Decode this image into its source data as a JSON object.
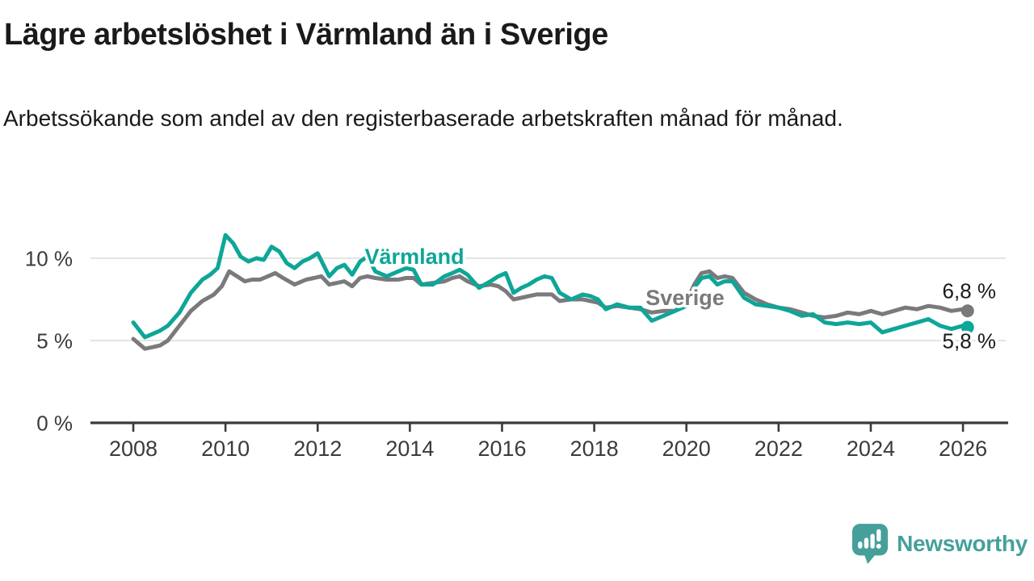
{
  "header": {
    "title": "Lägre arbetslöshet i Värmland än i Sverige",
    "subtitle": "Arbetssökande som andel av den registerbaserade arbetskraften månad för månad."
  },
  "branding": {
    "logo_text": "Newsworthy",
    "logo_color": "#45a09a",
    "logo_icon": "speech-bubble-bar-chart-icon"
  },
  "colors": {
    "varmland": "#0da698",
    "sverige": "#7a7a7d",
    "axis_text": "#3b3b3b",
    "axis_line": "#3a3a3a",
    "gridline": "#dbdbdb",
    "value_label": "#1a1a1a"
  },
  "chart_data": {
    "type": "line",
    "unit": "%",
    "grid": true,
    "x_axis": {
      "ticks": [
        2008,
        2010,
        2012,
        2014,
        2016,
        2018,
        2020,
        2022,
        2024,
        2026
      ],
      "range": [
        2008,
        2026.2
      ]
    },
    "y_axis": {
      "ticks": [
        {
          "value": 0,
          "label": "0 %"
        },
        {
          "value": 5,
          "label": "5 %"
        },
        {
          "value": 10,
          "label": "10 %"
        }
      ],
      "range": [
        0,
        12.5
      ]
    },
    "series": [
      {
        "name": "Sverige",
        "color": "#7a7a7d",
        "end_label": "6,8 %",
        "end_value": 6.8,
        "label_pos": {
          "x": 2019.97,
          "y": 7.16
        },
        "end_label_dy": -16,
        "points": [
          [
            2008.0,
            5.1
          ],
          [
            2008.25,
            4.5
          ],
          [
            2008.42,
            4.6
          ],
          [
            2008.58,
            4.7
          ],
          [
            2008.75,
            5.0
          ],
          [
            2009.0,
            5.9
          ],
          [
            2009.25,
            6.8
          ],
          [
            2009.5,
            7.4
          ],
          [
            2009.75,
            7.8
          ],
          [
            2009.92,
            8.3
          ],
          [
            2010.08,
            9.2
          ],
          [
            2010.25,
            8.9
          ],
          [
            2010.42,
            8.6
          ],
          [
            2010.58,
            8.7
          ],
          [
            2010.75,
            8.7
          ],
          [
            2010.92,
            8.9
          ],
          [
            2011.08,
            9.1
          ],
          [
            2011.25,
            8.8
          ],
          [
            2011.5,
            8.4
          ],
          [
            2011.75,
            8.7
          ],
          [
            2011.92,
            8.8
          ],
          [
            2012.08,
            8.9
          ],
          [
            2012.25,
            8.4
          ],
          [
            2012.42,
            8.5
          ],
          [
            2012.58,
            8.6
          ],
          [
            2012.75,
            8.3
          ],
          [
            2012.92,
            8.8
          ],
          [
            2013.08,
            8.9
          ],
          [
            2013.25,
            8.8
          ],
          [
            2013.5,
            8.7
          ],
          [
            2013.75,
            8.7
          ],
          [
            2013.92,
            8.8
          ],
          [
            2014.08,
            8.8
          ],
          [
            2014.25,
            8.4
          ],
          [
            2014.5,
            8.5
          ],
          [
            2014.75,
            8.6
          ],
          [
            2014.92,
            8.8
          ],
          [
            2015.08,
            8.9
          ],
          [
            2015.25,
            8.6
          ],
          [
            2015.5,
            8.3
          ],
          [
            2015.75,
            8.4
          ],
          [
            2015.92,
            8.3
          ],
          [
            2016.08,
            8.0
          ],
          [
            2016.25,
            7.5
          ],
          [
            2016.42,
            7.6
          ],
          [
            2016.58,
            7.7
          ],
          [
            2016.75,
            7.8
          ],
          [
            2016.92,
            7.8
          ],
          [
            2017.08,
            7.8
          ],
          [
            2017.25,
            7.4
          ],
          [
            2017.5,
            7.5
          ],
          [
            2017.75,
            7.5
          ],
          [
            2017.92,
            7.4
          ],
          [
            2018.08,
            7.3
          ],
          [
            2018.25,
            7.0
          ],
          [
            2018.5,
            7.1
          ],
          [
            2018.75,
            7.0
          ],
          [
            2019.0,
            6.9
          ],
          [
            2019.25,
            6.7
          ],
          [
            2019.5,
            6.8
          ],
          [
            2019.75,
            6.8
          ],
          [
            2020.0,
            7.3
          ],
          [
            2020.17,
            8.4
          ],
          [
            2020.33,
            9.1
          ],
          [
            2020.5,
            9.2
          ],
          [
            2020.67,
            8.8
          ],
          [
            2020.83,
            8.9
          ],
          [
            2021.0,
            8.8
          ],
          [
            2021.25,
            7.9
          ],
          [
            2021.5,
            7.5
          ],
          [
            2021.75,
            7.2
          ],
          [
            2022.0,
            7.0
          ],
          [
            2022.25,
            6.9
          ],
          [
            2022.5,
            6.7
          ],
          [
            2022.75,
            6.5
          ],
          [
            2023.0,
            6.4
          ],
          [
            2023.25,
            6.5
          ],
          [
            2023.5,
            6.7
          ],
          [
            2023.75,
            6.6
          ],
          [
            2024.0,
            6.8
          ],
          [
            2024.25,
            6.6
          ],
          [
            2024.5,
            6.8
          ],
          [
            2024.75,
            7.0
          ],
          [
            2025.0,
            6.9
          ],
          [
            2025.25,
            7.1
          ],
          [
            2025.5,
            7.0
          ],
          [
            2025.75,
            6.8
          ],
          [
            2026.0,
            6.9
          ],
          [
            2026.1,
            6.8
          ]
        ]
      },
      {
        "name": "Värmland",
        "color": "#0da698",
        "end_label": "5,8 %",
        "end_value": 5.8,
        "label_pos": {
          "x": 2014.1,
          "y": 9.65
        },
        "end_label_dy": 26,
        "points": [
          [
            2008.0,
            6.1
          ],
          [
            2008.25,
            5.2
          ],
          [
            2008.42,
            5.4
          ],
          [
            2008.58,
            5.6
          ],
          [
            2008.75,
            5.9
          ],
          [
            2009.0,
            6.7
          ],
          [
            2009.25,
            7.9
          ],
          [
            2009.5,
            8.7
          ],
          [
            2009.67,
            9.0
          ],
          [
            2009.83,
            9.4
          ],
          [
            2010.0,
            11.4
          ],
          [
            2010.17,
            10.9
          ],
          [
            2010.33,
            10.1
          ],
          [
            2010.5,
            9.8
          ],
          [
            2010.67,
            10.0
          ],
          [
            2010.83,
            9.9
          ],
          [
            2011.0,
            10.7
          ],
          [
            2011.17,
            10.4
          ],
          [
            2011.33,
            9.7
          ],
          [
            2011.5,
            9.4
          ],
          [
            2011.67,
            9.8
          ],
          [
            2011.83,
            10.0
          ],
          [
            2012.0,
            10.3
          ],
          [
            2012.25,
            8.9
          ],
          [
            2012.42,
            9.4
          ],
          [
            2012.58,
            9.6
          ],
          [
            2012.75,
            9.0
          ],
          [
            2012.92,
            9.8
          ],
          [
            2013.08,
            10.1
          ],
          [
            2013.25,
            9.2
          ],
          [
            2013.5,
            8.9
          ],
          [
            2013.75,
            9.2
          ],
          [
            2013.92,
            9.4
          ],
          [
            2014.08,
            9.3
          ],
          [
            2014.25,
            8.4
          ],
          [
            2014.5,
            8.4
          ],
          [
            2014.75,
            8.9
          ],
          [
            2014.92,
            9.1
          ],
          [
            2015.08,
            9.3
          ],
          [
            2015.25,
            9.0
          ],
          [
            2015.5,
            8.2
          ],
          [
            2015.75,
            8.6
          ],
          [
            2015.92,
            8.9
          ],
          [
            2016.08,
            9.1
          ],
          [
            2016.25,
            7.9
          ],
          [
            2016.42,
            8.2
          ],
          [
            2016.58,
            8.4
          ],
          [
            2016.75,
            8.7
          ],
          [
            2016.92,
            8.9
          ],
          [
            2017.08,
            8.8
          ],
          [
            2017.25,
            7.9
          ],
          [
            2017.5,
            7.5
          ],
          [
            2017.75,
            7.8
          ],
          [
            2017.92,
            7.7
          ],
          [
            2018.08,
            7.5
          ],
          [
            2018.25,
            6.9
          ],
          [
            2018.5,
            7.2
          ],
          [
            2018.75,
            7.0
          ],
          [
            2019.0,
            7.0
          ],
          [
            2019.25,
            6.2
          ],
          [
            2019.5,
            6.5
          ],
          [
            2019.75,
            6.8
          ],
          [
            2020.0,
            7.1
          ],
          [
            2020.17,
            8.2
          ],
          [
            2020.33,
            8.8
          ],
          [
            2020.5,
            8.9
          ],
          [
            2020.67,
            8.4
          ],
          [
            2020.83,
            8.6
          ],
          [
            2021.0,
            8.6
          ],
          [
            2021.25,
            7.6
          ],
          [
            2021.5,
            7.2
          ],
          [
            2021.75,
            7.1
          ],
          [
            2022.0,
            7.0
          ],
          [
            2022.25,
            6.8
          ],
          [
            2022.5,
            6.5
          ],
          [
            2022.75,
            6.6
          ],
          [
            2023.0,
            6.1
          ],
          [
            2023.25,
            6.0
          ],
          [
            2023.5,
            6.1
          ],
          [
            2023.75,
            6.0
          ],
          [
            2024.0,
            6.1
          ],
          [
            2024.25,
            5.5
          ],
          [
            2024.5,
            5.7
          ],
          [
            2024.75,
            5.9
          ],
          [
            2025.0,
            6.1
          ],
          [
            2025.25,
            6.3
          ],
          [
            2025.5,
            5.9
          ],
          [
            2025.75,
            5.7
          ],
          [
            2026.0,
            5.9
          ],
          [
            2026.1,
            5.8
          ]
        ]
      }
    ]
  }
}
